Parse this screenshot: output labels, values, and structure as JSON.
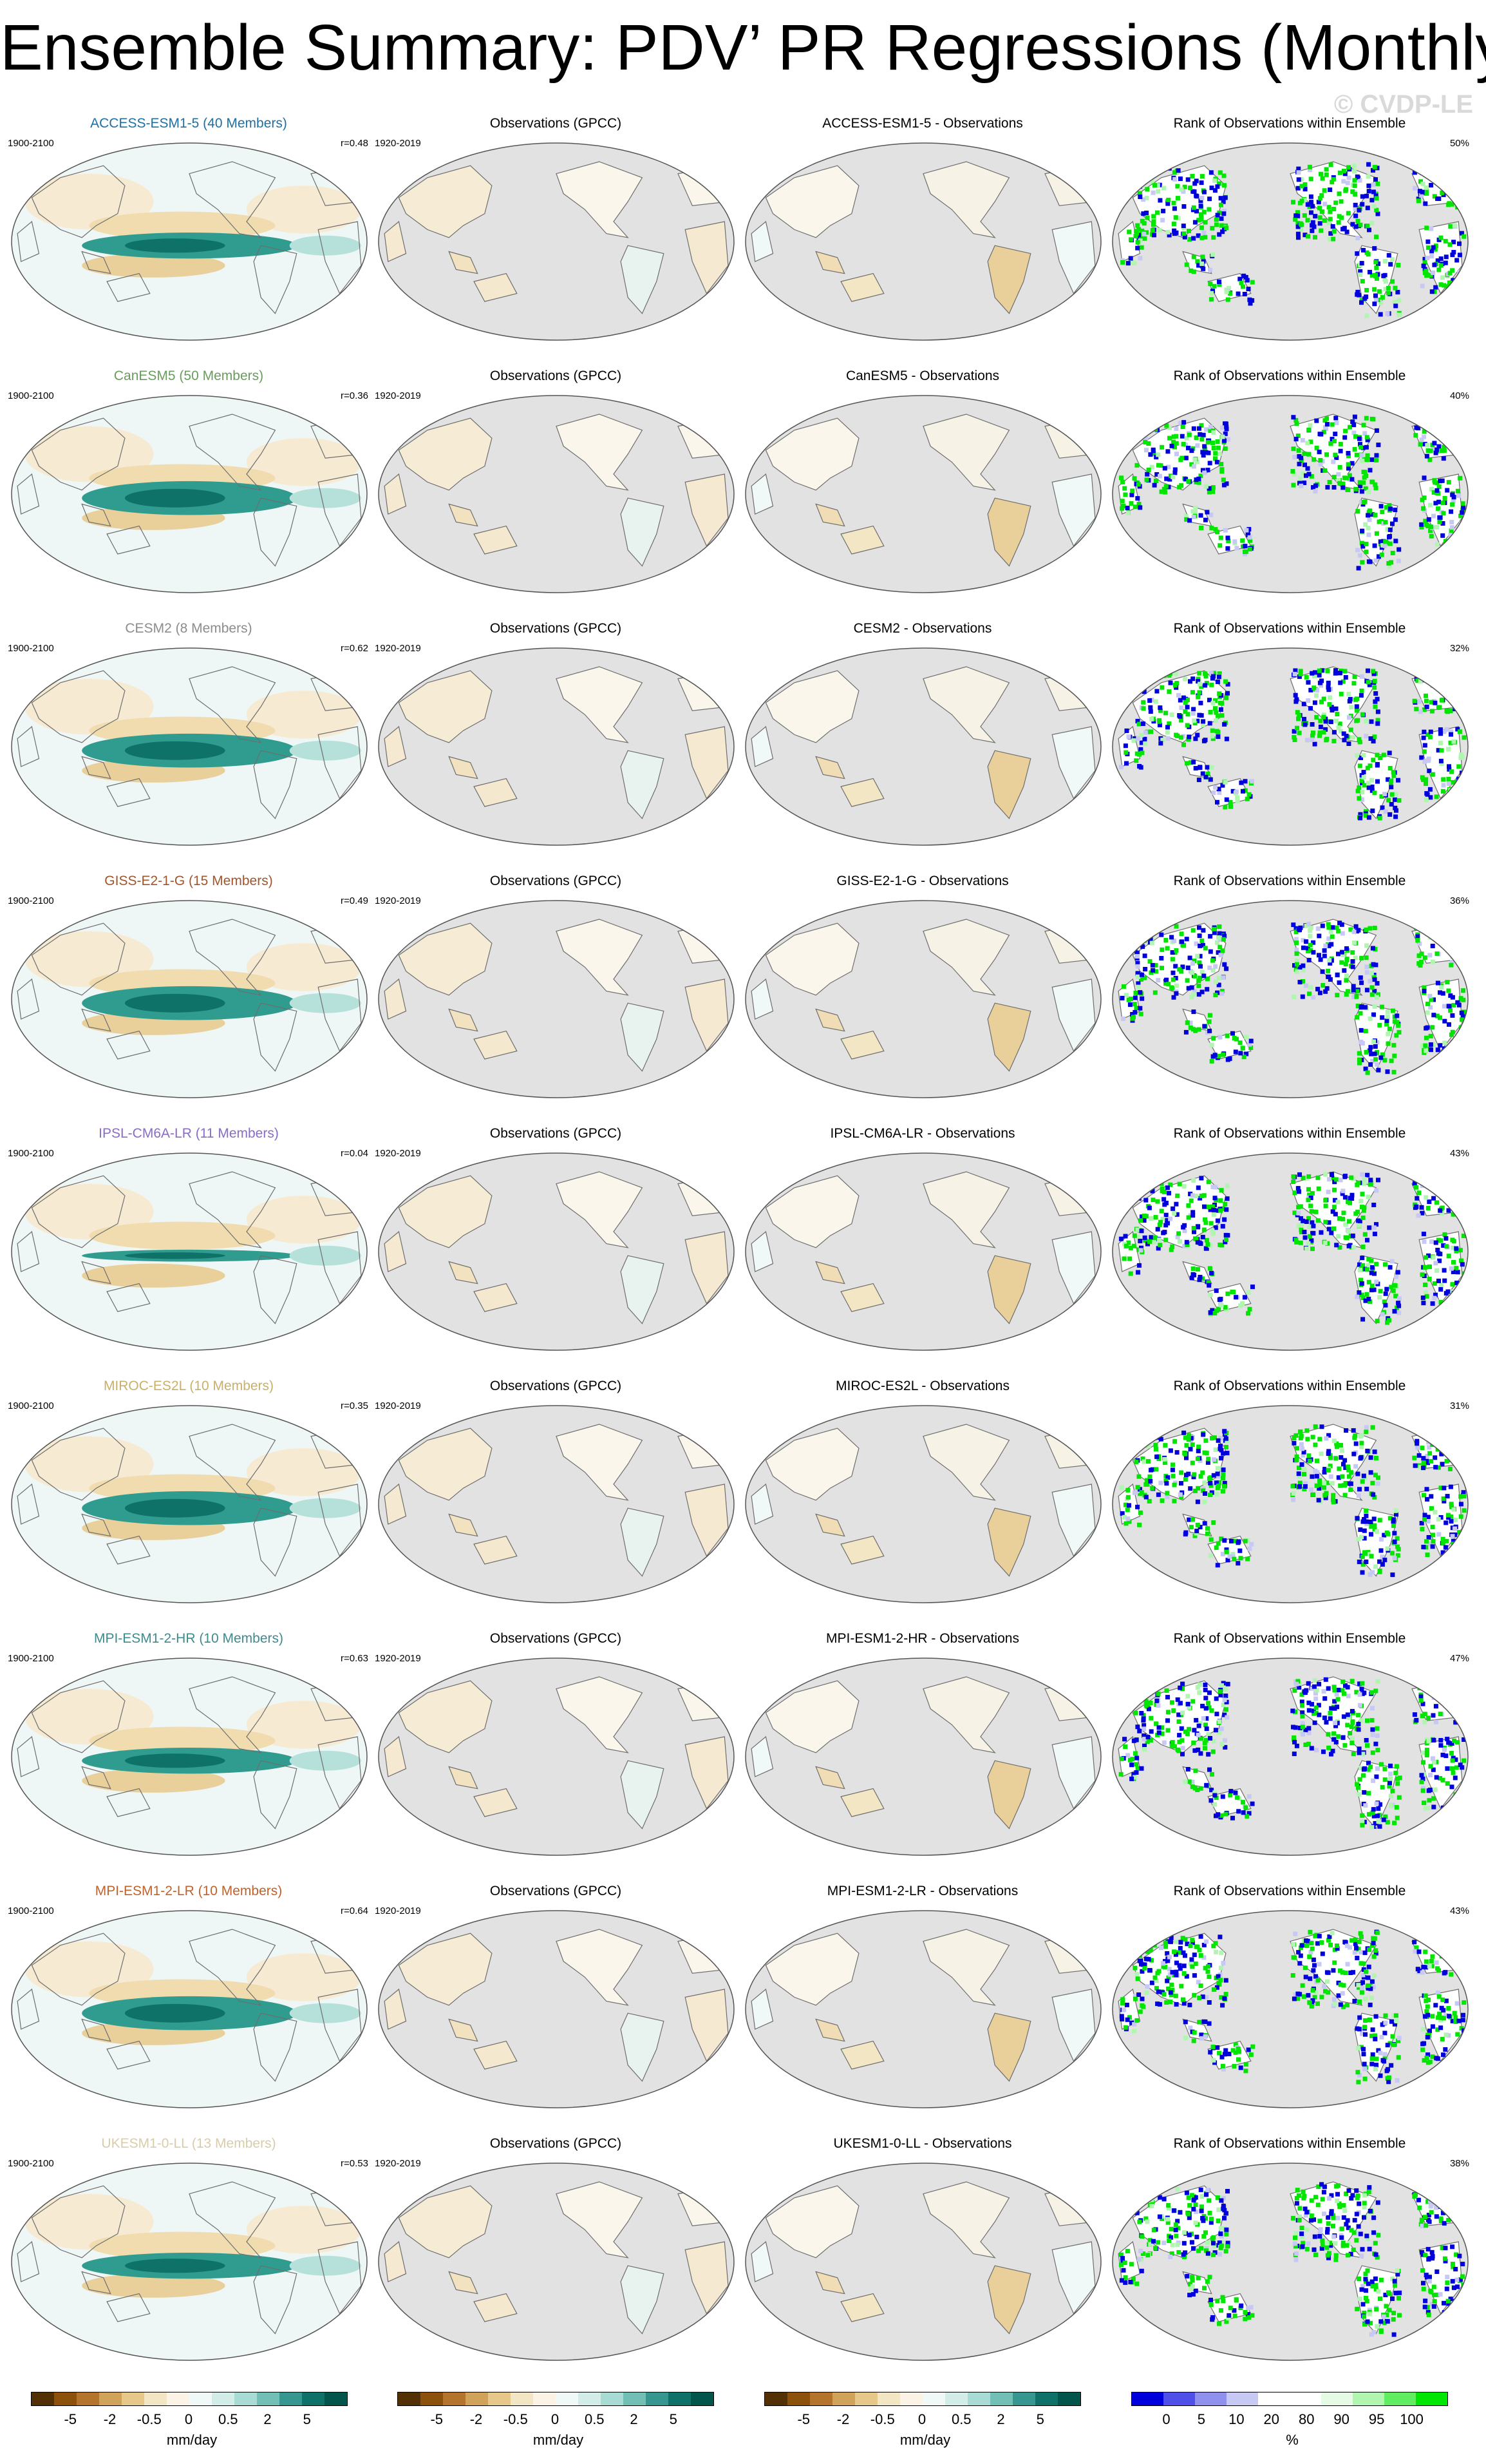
{
  "title": "Ensemble Summary: PDV’ PR Regressions (Monthly)",
  "watermark": "© CVDP-LE",
  "obs_title": "Observations (GPCC)",
  "obs_years": "1920-2019",
  "model_years": "1900-2100",
  "rank_title": "Rank of Observations within Ensemble",
  "rows": [
    {
      "model": "ACCESS-ESM1-5 (40 Members)",
      "color": "#1f6fa3",
      "r": "r=0.48",
      "diff": "ACCESS-ESM1-5 - Observations",
      "rank_pct": "50%",
      "ring": "mid"
    },
    {
      "model": "CanESM5 (50 Members)",
      "color": "#6a9c5e",
      "r": "r=0.36",
      "diff": "CanESM5 - Observations",
      "rank_pct": "40%",
      "ring": "strong"
    },
    {
      "model": "CESM2 (8 Members)",
      "color": "#8c8c8c",
      "r": "r=0.62",
      "diff": "CESM2 - Observations",
      "rank_pct": "32%",
      "ring": "strong"
    },
    {
      "model": "GISS-E2-1-G (15 Members)",
      "color": "#a0552b",
      "r": "r=0.49",
      "diff": "GISS-E2-1-G - Observations",
      "rank_pct": "36%",
      "ring": "strong"
    },
    {
      "model": "IPSL-CM6A-LR (11 Members)",
      "color": "#8a6bc7",
      "r": "r=0.04",
      "diff": "IPSL-CM6A-LR - Observations",
      "rank_pct": "43%",
      "ring": "weak"
    },
    {
      "model": "MIROC-ES2L (10 Members)",
      "color": "#c9b06a",
      "r": "r=0.35",
      "diff": "MIROC-ES2L - Observations",
      "rank_pct": "31%",
      "ring": "strong"
    },
    {
      "model": "MPI-ESM1-2-HR (10 Members)",
      "color": "#3f8a8c",
      "r": "r=0.63",
      "diff": "MPI-ESM1-2-HR - Observations",
      "rank_pct": "47%",
      "ring": "mid"
    },
    {
      "model": "MPI-ESM1-2-LR (10 Members)",
      "color": "#c0622b",
      "r": "r=0.64",
      "diff": "MPI-ESM1-2-LR - Observations",
      "rank_pct": "43%",
      "ring": "strong"
    },
    {
      "model": "UKESM1-0-LL (13 Members)",
      "color": "#d9ccaa",
      "r": "r=0.53",
      "diff": "UKESM1-0-LL - Observations",
      "rank_pct": "38%",
      "ring": "mid"
    }
  ],
  "colorbar_pr": {
    "colors": [
      "#543005",
      "#8c510a",
      "#b4742b",
      "#d0a25a",
      "#e6c98a",
      "#f3e6c4",
      "#fbf4e6",
      "#f1f9f8",
      "#d2ece8",
      "#a8dbd3",
      "#72bfb5",
      "#35978f",
      "#0f7268",
      "#01554b"
    ],
    "ticks": [
      "-5",
      "-2",
      "-0.5",
      "0",
      "0.5",
      "2",
      "5"
    ],
    "unit": "mm/day"
  },
  "colorbar_rank": {
    "colors": [
      "#0000dd",
      "#5050e8",
      "#9090ee",
      "#c8c8f5",
      "#ffffff",
      "#ffffff",
      "#e6fbe6",
      "#b0f5b0",
      "#60ee60",
      "#00e600"
    ],
    "ticks": [
      "0",
      "5",
      "10",
      "20",
      "80",
      "90",
      "95",
      "100"
    ],
    "unit": "%"
  }
}
